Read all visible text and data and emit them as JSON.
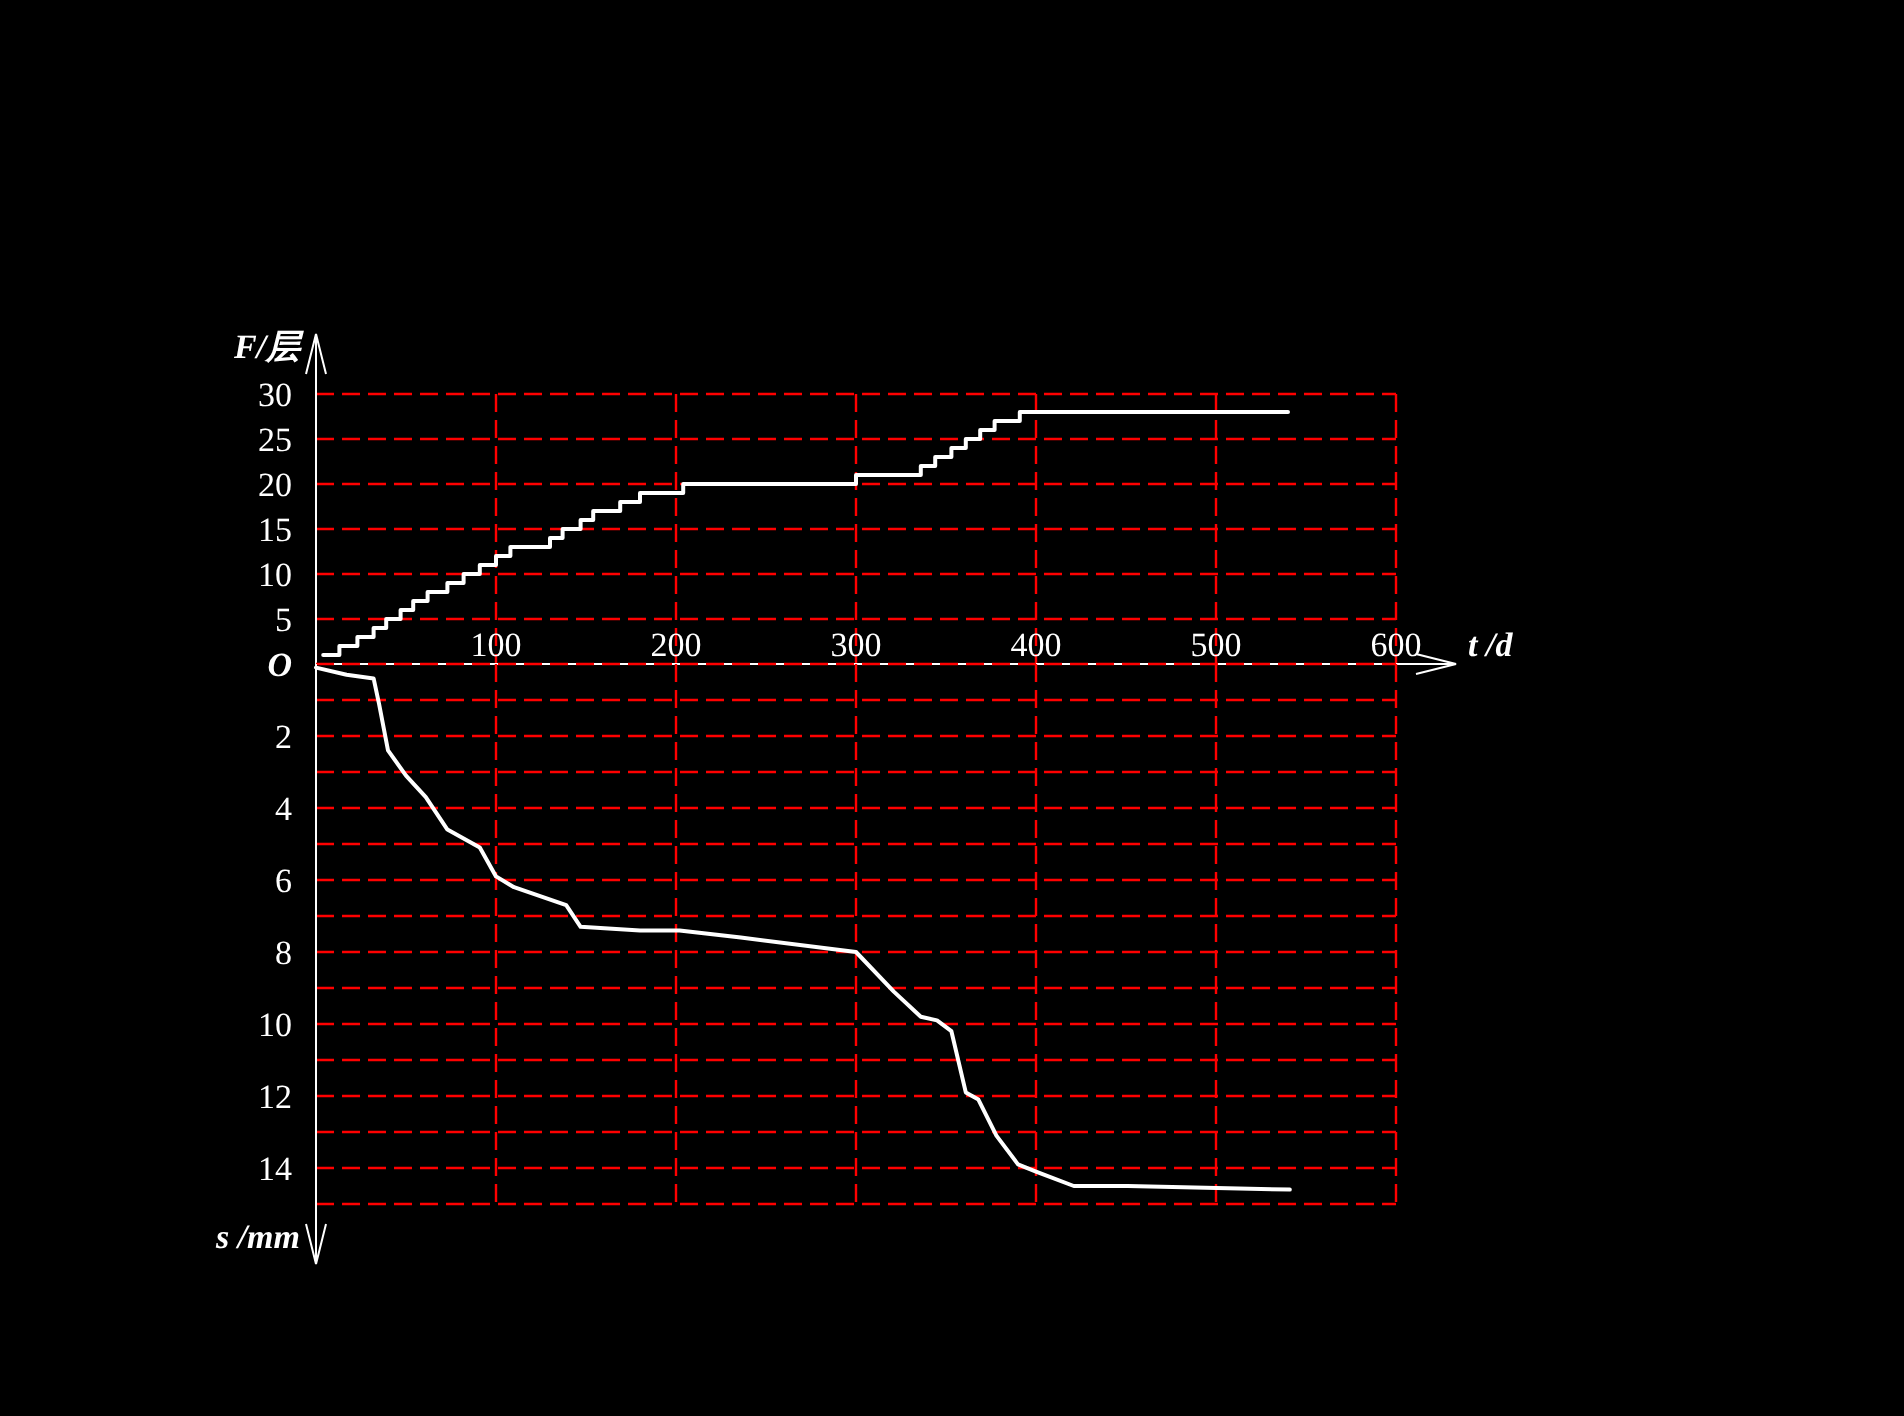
{
  "chart_data": [
    {
      "type": "step",
      "ylabel": "F/层",
      "xlabel": "t /d",
      "xlim": [
        0,
        600
      ],
      "xticks": [
        100,
        200,
        300,
        400,
        500,
        600
      ],
      "ylim": [
        0,
        30
      ],
      "yticks": [
        5,
        10,
        15,
        20,
        25,
        30
      ],
      "grid": true,
      "series": [
        {
          "color": "#ffffff",
          "x": [
            4,
            13,
            23,
            32,
            39,
            47,
            54,
            62,
            73,
            82,
            91,
            100,
            108,
            130,
            137,
            147,
            154,
            169,
            180,
            204,
            300,
            336,
            344,
            353,
            361,
            369,
            377,
            391,
            540
          ],
          "values": [
            1,
            2,
            3,
            4,
            5,
            6,
            7,
            8,
            9,
            10,
            11,
            12,
            13,
            14,
            15,
            16,
            17,
            18,
            19,
            20,
            21,
            22,
            23,
            24,
            25,
            26,
            27,
            28,
            28
          ]
        }
      ]
    },
    {
      "type": "line",
      "ylabel": "s /mm",
      "xlim": [
        0,
        600
      ],
      "xticks": [
        100,
        200,
        300,
        400,
        500,
        600
      ],
      "tick_labels": "y",
      "ylim": [
        15,
        0
      ],
      "yticks": [
        {
          "value": 0,
          "label": "O"
        },
        {
          "value": 1,
          "label": null
        },
        2,
        {
          "value": 3,
          "label": null
        },
        4,
        {
          "value": 5,
          "label": null
        },
        6,
        {
          "value": 7,
          "label": null
        },
        8,
        {
          "value": 9,
          "label": null
        },
        10,
        {
          "value": 11,
          "label": null
        },
        12,
        {
          "value": 13,
          "label": null
        },
        14,
        {
          "value": 15,
          "label": null
        }
      ],
      "grid": true,
      "series": [
        {
          "color": "#ffffff",
          "x": [
            0,
            17,
            32,
            35,
            40,
            50,
            61,
            73,
            91,
            100,
            110,
            139,
            147,
            180,
            202,
            236,
            300,
            321,
            336,
            345,
            353,
            361,
            368,
            378,
            390,
            400,
            421,
            451,
            541
          ],
          "values": [
            0.1,
            0.3,
            0.4,
            1.1,
            2.4,
            3.1,
            3.7,
            4.6,
            5.1,
            5.9,
            6.2,
            6.7,
            7.3,
            7.4,
            7.4,
            7.6,
            8.0,
            9.1,
            9.8,
            9.9,
            10.2,
            11.9,
            12.1,
            13.1,
            13.9,
            14.1,
            14.5,
            14.5,
            14.6
          ]
        }
      ]
    }
  ]
}
